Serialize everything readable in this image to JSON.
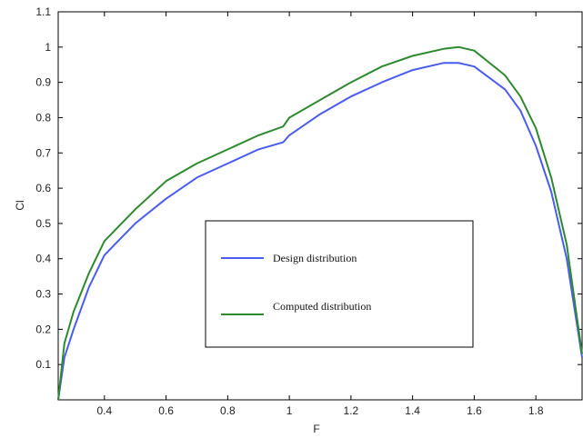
{
  "chart_data": {
    "type": "line",
    "title": "",
    "xlabel": "F",
    "ylabel": "Cl",
    "xlim": [
      0.25,
      1.95
    ],
    "ylim": [
      0,
      1.1
    ],
    "xticks": [
      "0.4",
      "0.6",
      "0.8",
      "1",
      "1.2",
      "1.4",
      "1.6",
      "1.8"
    ],
    "xtick_values": [
      0.4,
      0.6,
      0.8,
      1.0,
      1.2,
      1.4,
      1.6,
      1.8
    ],
    "yticks": [
      "0.1",
      "0.2",
      "0.3",
      "0.4",
      "0.5",
      "0.6",
      "0.7",
      "0.8",
      "0.9",
      "1",
      "1.1"
    ],
    "ytick_values": [
      0.1,
      0.2,
      0.3,
      0.4,
      0.5,
      0.6,
      0.7,
      0.8,
      0.9,
      1.0,
      1.1
    ],
    "grid": false,
    "legend_position": "center",
    "series": [
      {
        "name": "Design distribution",
        "color": "#4a5cf0",
        "x": [
          0.25,
          0.27,
          0.3,
          0.35,
          0.4,
          0.5,
          0.6,
          0.7,
          0.8,
          0.9,
          0.98,
          1.0,
          1.1,
          1.2,
          1.3,
          1.4,
          1.5,
          1.55,
          1.6,
          1.7,
          1.75,
          1.8,
          1.85,
          1.9,
          1.95
        ],
        "values": [
          0.0,
          0.12,
          0.2,
          0.32,
          0.41,
          0.5,
          0.57,
          0.63,
          0.67,
          0.71,
          0.73,
          0.75,
          0.81,
          0.86,
          0.9,
          0.935,
          0.955,
          0.955,
          0.945,
          0.88,
          0.82,
          0.72,
          0.59,
          0.4,
          0.12
        ]
      },
      {
        "name": "Computed distribution",
        "color": "#2e8a2e",
        "x": [
          0.25,
          0.27,
          0.3,
          0.35,
          0.4,
          0.5,
          0.6,
          0.7,
          0.8,
          0.9,
          0.98,
          1.0,
          1.1,
          1.2,
          1.3,
          1.4,
          1.5,
          1.55,
          1.6,
          1.7,
          1.75,
          1.8,
          1.85,
          1.9,
          1.95
        ],
        "values": [
          0.0,
          0.16,
          0.25,
          0.36,
          0.45,
          0.54,
          0.62,
          0.67,
          0.71,
          0.75,
          0.775,
          0.8,
          0.85,
          0.9,
          0.945,
          0.975,
          0.995,
          1.0,
          0.99,
          0.92,
          0.86,
          0.77,
          0.63,
          0.44,
          0.13
        ]
      }
    ]
  }
}
